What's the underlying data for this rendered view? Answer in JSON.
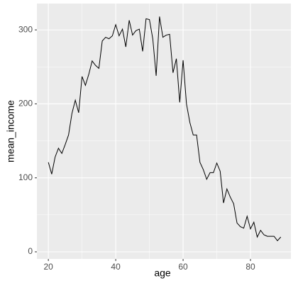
{
  "chart_data": {
    "type": "line",
    "x_label": "age",
    "y_label": "mean_income",
    "x": [
      20,
      21,
      22,
      23,
      24,
      25,
      26,
      27,
      28,
      29,
      30,
      31,
      32,
      33,
      34,
      35,
      36,
      37,
      38,
      39,
      40,
      41,
      42,
      43,
      44,
      45,
      46,
      47,
      48,
      49,
      50,
      51,
      52,
      53,
      54,
      55,
      56,
      57,
      58,
      59,
      60,
      61,
      62,
      63,
      64,
      65,
      66,
      67,
      68,
      69,
      70,
      71,
      72,
      73,
      74,
      75,
      76,
      77,
      78,
      79,
      80,
      81,
      82,
      83,
      84,
      85,
      86,
      87,
      88,
      89
    ],
    "values": [
      121,
      105,
      128,
      140,
      133,
      145,
      158,
      187,
      205,
      188,
      237,
      225,
      240,
      258,
      252,
      248,
      285,
      290,
      288,
      292,
      307,
      292,
      301,
      277,
      313,
      293,
      299,
      301,
      271,
      315,
      314,
      288,
      238,
      318,
      290,
      293,
      294,
      242,
      261,
      202,
      259,
      200,
      175,
      158,
      158,
      121,
      111,
      98,
      107,
      107,
      120,
      109,
      66,
      85,
      74,
      65,
      39,
      34,
      32,
      48,
      31,
      40,
      20,
      29,
      23,
      21,
      21,
      21,
      15,
      20
    ],
    "color": "#000000",
    "xlim": [
      16.6,
      92
    ],
    "ylim": [
      -9.6,
      335.6
    ],
    "xticks": [
      20,
      40,
      60,
      80
    ],
    "yticks": [
      0,
      100,
      200,
      300
    ],
    "grid": true
  }
}
